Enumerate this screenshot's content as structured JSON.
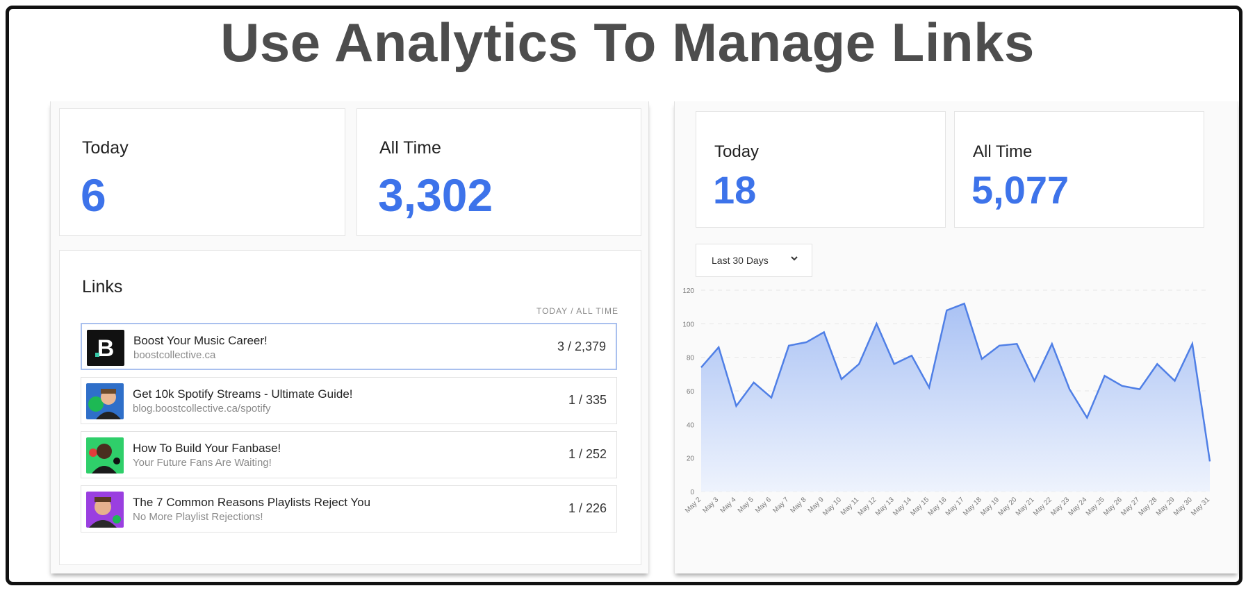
{
  "headline": "Use Analytics To Manage Links",
  "left_panel": {
    "today": {
      "label": "Today",
      "value": "6"
    },
    "all_time": {
      "label": "All Time",
      "value": "3,302"
    },
    "links": {
      "title": "Links",
      "column_header": "TODAY / ALL TIME",
      "items": [
        {
          "title": "Boost Your Music Career!",
          "subtitle": "boostcollective.ca",
          "counts": "3 / 2,379",
          "thumb_icon": "boost-logo-icon"
        },
        {
          "title": "Get 10k Spotify Streams - Ultimate Guide!",
          "subtitle": "blog.boostcollective.ca/spotify",
          "counts": "1 / 335",
          "thumb_icon": "person-thumbnail-icon"
        },
        {
          "title": "How To Build Your Fanbase!",
          "subtitle": "Your Future Fans Are Waiting!",
          "counts": "1 / 252",
          "thumb_icon": "person-thumbnail-icon"
        },
        {
          "title": "The 7 Common Reasons Playlists Reject You",
          "subtitle": "No More Playlist Rejections!",
          "counts": "1 / 226",
          "thumb_icon": "person-thumbnail-icon"
        }
      ]
    }
  },
  "right_panel": {
    "today": {
      "label": "Today",
      "value": "18"
    },
    "all_time": {
      "label": "All Time",
      "value": "5,077"
    },
    "range_dropdown": {
      "selected": "Last 30 Days",
      "icon": "chevron-down-icon"
    }
  },
  "colors": {
    "accent": "#3d73ea",
    "line": "#4f7fe6",
    "fill_top": "#aac2f4",
    "fill_bottom": "#eef3fd"
  },
  "chart_data": {
    "type": "area",
    "x": [
      "May 2",
      "May 3",
      "May 4",
      "May 5",
      "May 6",
      "May 7",
      "May 8",
      "May 9",
      "May 10",
      "May 11",
      "May 12",
      "May 13",
      "May 14",
      "May 15",
      "May 16",
      "May 17",
      "May 18",
      "May 19",
      "May 20",
      "May 21",
      "May 22",
      "May 23",
      "May 24",
      "May 25",
      "May 26",
      "May 27",
      "May 28",
      "May 29",
      "May 30",
      "May 31"
    ],
    "series": [
      {
        "values": [
          74,
          86,
          51,
          65,
          56,
          87,
          89,
          95,
          67,
          76,
          100,
          76,
          81,
          62,
          108,
          112,
          79,
          87,
          88,
          66,
          88,
          61,
          44,
          69,
          63,
          61,
          76,
          66,
          88,
          18
        ]
      }
    ],
    "yticks": [
      0,
      20,
      40,
      60,
      80,
      100,
      120
    ],
    "ylim": [
      0,
      120
    ],
    "grid": "horizontal dashed",
    "legend": "none"
  }
}
